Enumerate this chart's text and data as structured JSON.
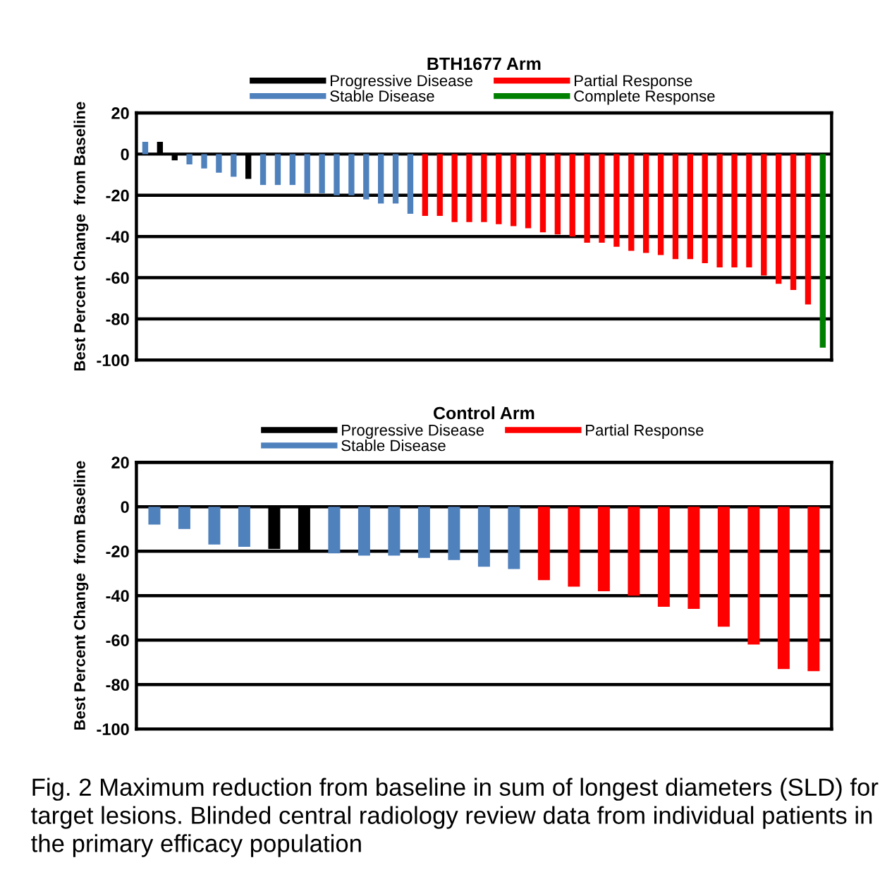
{
  "chart_data": [
    {
      "type": "bar",
      "title": "BTH1677 Arm",
      "ylabel": "Best Percent Change  from Baseline",
      "categories": [
        null,
        null,
        null,
        null,
        null,
        null,
        null,
        null,
        null,
        null,
        null,
        null,
        null,
        null,
        null,
        null,
        null,
        null,
        null,
        null,
        null,
        null,
        null,
        null,
        null,
        null,
        null,
        null,
        null,
        null,
        null,
        null,
        null,
        null,
        null,
        null,
        null,
        null,
        null,
        null,
        null,
        null,
        null,
        null,
        null,
        null,
        null
      ],
      "series": [
        {
          "name": "Progressive Disease",
          "color": "#000000",
          "values": [
            null,
            6,
            -3,
            null,
            null,
            null,
            null,
            -12,
            null,
            null,
            null,
            null,
            null,
            null,
            null,
            null,
            null,
            null,
            null,
            null,
            null,
            null,
            null,
            null,
            null,
            null,
            null,
            null,
            null,
            null,
            null,
            null,
            null,
            null,
            null,
            null,
            null,
            null,
            null,
            null,
            null,
            null,
            null,
            null,
            null,
            null,
            null
          ]
        },
        {
          "name": "Stable Disease",
          "color": "#4f81bd",
          "values": [
            6,
            null,
            null,
            -5,
            -7,
            -9,
            -11,
            null,
            -15,
            -15,
            -15,
            -19,
            -19,
            -20,
            -20,
            -22,
            -24,
            -24,
            -29,
            null,
            null,
            null,
            null,
            null,
            null,
            null,
            null,
            null,
            null,
            null,
            null,
            null,
            null,
            null,
            null,
            null,
            null,
            null,
            null,
            null,
            null,
            null,
            null,
            null,
            null,
            null,
            null
          ]
        },
        {
          "name": "Partial Response",
          "color": "#ff0000",
          "values": [
            null,
            null,
            null,
            null,
            null,
            null,
            null,
            null,
            null,
            null,
            null,
            null,
            null,
            null,
            null,
            null,
            null,
            null,
            null,
            -30,
            -30,
            -33,
            -33,
            -33,
            -34,
            -35,
            -36,
            -38,
            -39,
            -40,
            -43,
            -43,
            -45,
            -47,
            -48,
            -49,
            -51,
            -51,
            -53,
            -55,
            -55,
            -55,
            -59,
            -63,
            -66,
            -73,
            null
          ]
        },
        {
          "name": "Complete Response",
          "color": "#008000",
          "values": [
            null,
            null,
            null,
            null,
            null,
            null,
            null,
            null,
            null,
            null,
            null,
            null,
            null,
            null,
            null,
            null,
            null,
            null,
            null,
            null,
            null,
            null,
            null,
            null,
            null,
            null,
            null,
            null,
            null,
            null,
            null,
            null,
            null,
            null,
            null,
            null,
            null,
            null,
            null,
            null,
            null,
            null,
            null,
            null,
            null,
            null,
            -94
          ]
        }
      ],
      "ylim": [
        -100,
        20
      ],
      "yticks": [
        -100,
        -80,
        -60,
        -40,
        -20,
        0,
        20
      ],
      "grid": "y",
      "legend": "top",
      "tick_labels": "y"
    },
    {
      "type": "bar",
      "title": "Control Arm",
      "ylabel": "Best Percent Change  from Baseline",
      "categories": [
        null,
        null,
        null,
        null,
        null,
        null,
        null,
        null,
        null,
        null,
        null,
        null,
        null,
        null,
        null,
        null,
        null,
        null,
        null,
        null,
        null,
        null,
        null
      ],
      "series": [
        {
          "name": "Progressive Disease",
          "color": "#000000",
          "values": [
            null,
            null,
            null,
            null,
            -19,
            -20,
            null,
            null,
            null,
            null,
            null,
            null,
            null,
            null,
            null,
            null,
            null,
            null,
            null,
            null,
            null,
            null,
            null
          ]
        },
        {
          "name": "Stable Disease",
          "color": "#4f81bd",
          "values": [
            -8,
            -10,
            -17,
            -18,
            null,
            null,
            -21,
            -22,
            -22,
            -23,
            -24,
            -27,
            -28,
            null,
            null,
            null,
            null,
            null,
            null,
            null,
            null,
            null,
            null
          ]
        },
        {
          "name": "Partial Response",
          "color": "#ff0000",
          "values": [
            null,
            null,
            null,
            null,
            null,
            null,
            null,
            null,
            null,
            null,
            null,
            null,
            null,
            -33,
            -36,
            -38,
            -40,
            -45,
            -46,
            -54,
            -62,
            -73,
            -74
          ]
        }
      ],
      "ylim": [
        -100,
        20
      ],
      "yticks": [
        -100,
        -80,
        -60,
        -40,
        -20,
        0,
        20
      ],
      "grid": "y",
      "legend": "top",
      "tick_labels": "y",
      "annotations": [
        "Fig. 2 Maximum reduction from baseline in sum of longest diameters (SLD) for target lesions. Blinded central radiology review data from individual patients in the primary efficacy population"
      ]
    }
  ]
}
